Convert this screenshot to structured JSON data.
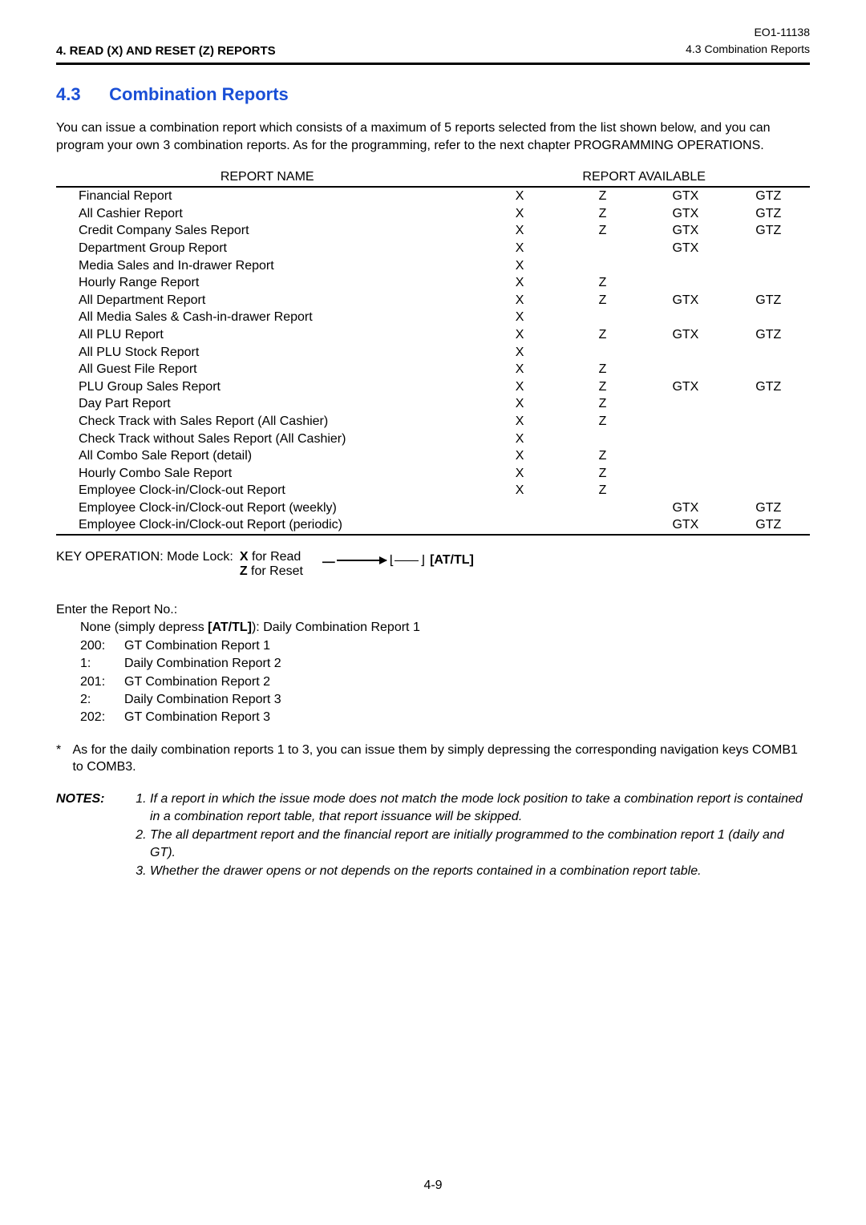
{
  "header": {
    "left": "4.   READ (X) AND RESET (Z) REPORTS",
    "doc_code": "EO1-11138",
    "breadcrumb": "4.3  Combination Reports"
  },
  "section": {
    "number": "4.3",
    "title": "Combination Reports",
    "intro": "You can issue a combination report which consists of a maximum of 5 reports selected from the list shown below, and you can program your own 3 combination reports. As for the programming, refer to the next chapter PROGRAMMING OPERATIONS."
  },
  "table": {
    "head_name": "REPORT NAME",
    "head_avail": "REPORT AVAILABLE",
    "rows": [
      {
        "name": "Financial Report",
        "x": "X",
        "z": "Z",
        "gtx": "GTX",
        "gtz": "GTZ"
      },
      {
        "name": "All Cashier Report",
        "x": "X",
        "z": "Z",
        "gtx": "GTX",
        "gtz": "GTZ"
      },
      {
        "name": "Credit Company Sales Report",
        "x": "X",
        "z": "Z",
        "gtx": "GTX",
        "gtz": "GTZ"
      },
      {
        "name": "Department Group Report",
        "x": "X",
        "z": "",
        "gtx": "GTX",
        "gtz": ""
      },
      {
        "name": "Media Sales and In-drawer Report",
        "x": "X",
        "z": "",
        "gtx": "",
        "gtz": ""
      },
      {
        "name": "Hourly Range Report",
        "x": "X",
        "z": "Z",
        "gtx": "",
        "gtz": ""
      },
      {
        "name": "All Department Report",
        "x": "X",
        "z": "Z",
        "gtx": "GTX",
        "gtz": "GTZ"
      },
      {
        "name": "All Media Sales & Cash-in-drawer Report",
        "x": "X",
        "z": "",
        "gtx": "",
        "gtz": ""
      },
      {
        "name": "All PLU Report",
        "x": "X",
        "z": "Z",
        "gtx": "GTX",
        "gtz": "GTZ"
      },
      {
        "name": "All PLU Stock Report",
        "x": "X",
        "z": "",
        "gtx": "",
        "gtz": ""
      },
      {
        "name": "All Guest File Report",
        "x": "X",
        "z": "Z",
        "gtx": "",
        "gtz": ""
      },
      {
        "name": "PLU Group Sales Report",
        "x": "X",
        "z": "Z",
        "gtx": "GTX",
        "gtz": "GTZ"
      },
      {
        "name": "Day Part Report",
        "x": "X",
        "z": "Z",
        "gtx": "",
        "gtz": ""
      },
      {
        "name": "Check Track with Sales Report (All Cashier)",
        "x": "X",
        "z": "Z",
        "gtx": "",
        "gtz": ""
      },
      {
        "name": "Check Track without Sales Report (All Cashier)",
        "x": "X",
        "z": "",
        "gtx": "",
        "gtz": ""
      },
      {
        "name": "All Combo Sale Report (detail)",
        "x": "X",
        "z": "Z",
        "gtx": "",
        "gtz": ""
      },
      {
        "name": "Hourly Combo Sale Report",
        "x": "X",
        "z": "Z",
        "gtx": "",
        "gtz": ""
      },
      {
        "name": "Employee Clock-in/Clock-out Report",
        "x": "X",
        "z": "Z",
        "gtx": "",
        "gtz": ""
      },
      {
        "name": "Employee Clock-in/Clock-out Report (weekly)",
        "x": "",
        "z": "",
        "gtx": "GTX",
        "gtz": "GTZ"
      },
      {
        "name": "Employee Clock-in/Clock-out Report (periodic)",
        "x": "",
        "z": "",
        "gtx": "GTX",
        "gtz": "GTZ"
      }
    ]
  },
  "keyop": {
    "prefix": "KEY OPERATION:  Mode Lock:",
    "x_line_bold": "X",
    "x_line_rest": " for Read",
    "z_line_bold": "Z",
    "z_line_rest": " for Reset",
    "attl": "[AT/TL]"
  },
  "report_no": {
    "title": "Enter the Report No.:",
    "none_line_pre": "None (simply depress ",
    "none_line_bold": "[AT/TL]",
    "none_line_post": "):  Daily Combination Report 1",
    "items": [
      {
        "code": "200:",
        "label": "GT Combination Report 1"
      },
      {
        "code": "1:",
        "label": "Daily Combination Report 2"
      },
      {
        "code": "201:",
        "label": "GT Combination Report 2"
      },
      {
        "code": "2:",
        "label": "Daily Combination Report 3"
      },
      {
        "code": "202:",
        "label": "GT Combination Report 3"
      }
    ]
  },
  "asterisk": "As for the daily combination reports 1 to 3, you can issue them by simply depressing the corresponding navigation keys COMB1 to COMB3.",
  "notes": {
    "label": "NOTES:",
    "items": [
      "If a report in which the issue mode does not match the mode lock position to take a combination report is contained in a combination report table, that report issuance will be skipped.",
      "The all department report and the financial report are initially programmed to the combination report 1 (daily and GT).",
      "Whether the drawer opens or not depends on the reports contained in a combination report table."
    ]
  },
  "page_number": "4-9"
}
